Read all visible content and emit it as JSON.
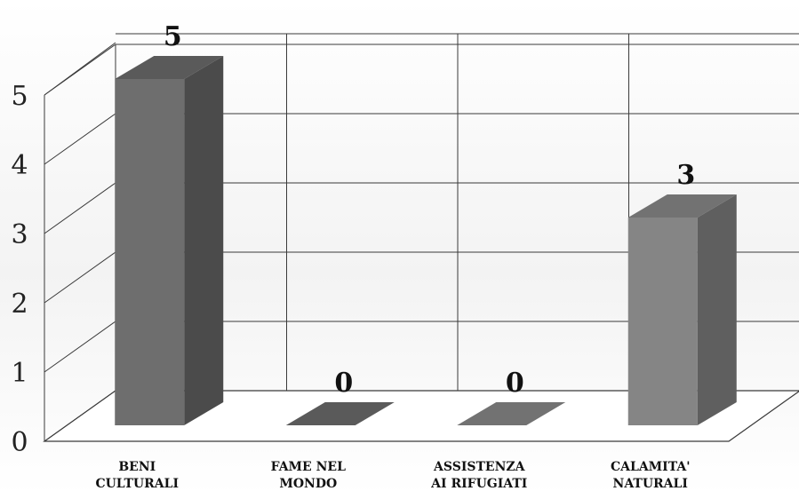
{
  "chart_data": {
    "type": "bar",
    "categories": [
      [
        "BENI",
        "CULTURALI"
      ],
      [
        "FAME NEL",
        "MONDO"
      ],
      [
        "ASSISTENZA",
        "AI RIFUGIATI"
      ],
      [
        "CALAMITA'",
        "NATURALI"
      ]
    ],
    "values": [
      5,
      0,
      0,
      3
    ],
    "data_labels": [
      "5",
      "0",
      "0",
      "3"
    ],
    "yticks": [
      "0",
      "1",
      "2",
      "3",
      "4",
      "5"
    ],
    "ylim": [
      0,
      5
    ],
    "grid": true,
    "legend": "none",
    "title": "",
    "xlabel": "",
    "ylabel": "",
    "colors": {
      "bar_front": "#6e6e6e",
      "bar_side": "#4b4b4b",
      "bar_top": "#5a5a5a",
      "bar_front_light": "#858585",
      "bar_side_light": "#5f5f5f",
      "bar_top_light": "#727272",
      "grid": "#3a3a3a",
      "floor": "#ffffff"
    }
  }
}
